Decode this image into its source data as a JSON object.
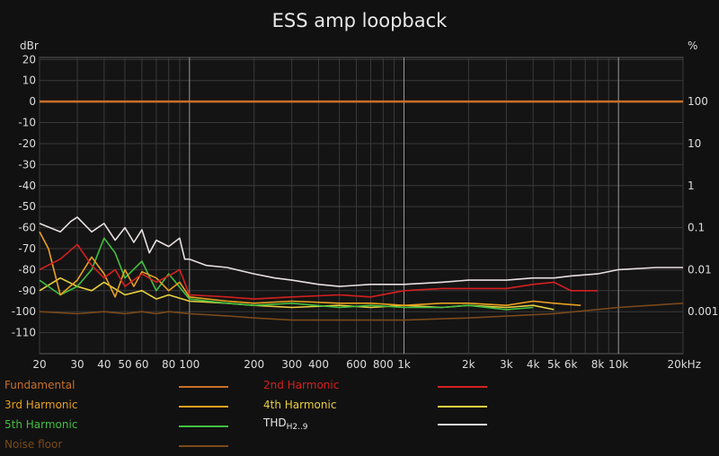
{
  "chart_data": {
    "type": "line",
    "title": "ESS amp loopback",
    "y_left_unit": "dBr",
    "y_right_unit": "%",
    "xlim": [
      20,
      20000
    ],
    "x_scale": "log",
    "ylim": [
      -120,
      21
    ],
    "y_ticks": [
      20,
      10,
      0,
      -10,
      -20,
      -30,
      -40,
      -50,
      -60,
      -70,
      -80,
      -90,
      -100,
      -110
    ],
    "y_tick_labels": [
      "20",
      "10",
      "0",
      "-10",
      "-20",
      "-30",
      "-40",
      "-50",
      "-60",
      "-70",
      "-80",
      "-90",
      "-100",
      "-110"
    ],
    "y_right_ticks": [
      {
        "label": "100",
        "dbr": 0
      },
      {
        "label": "10",
        "dbr": -20
      },
      {
        "label": "1",
        "dbr": -40
      },
      {
        "label": "0.1",
        "dbr": -60
      },
      {
        "label": "0.01",
        "dbr": -80
      },
      {
        "label": "0.001",
        "dbr": -100
      }
    ],
    "x_tick_labels": [
      {
        "label": "20",
        "x": 20
      },
      {
        "label": "30",
        "x": 30
      },
      {
        "label": "40",
        "x": 40
      },
      {
        "label": "50",
        "x": 50
      },
      {
        "label": "60",
        "x": 60
      },
      {
        "label": "80",
        "x": 80
      },
      {
        "label": "100",
        "x": 100
      },
      {
        "label": "200",
        "x": 200
      },
      {
        "label": "300",
        "x": 300
      },
      {
        "label": "400",
        "x": 400
      },
      {
        "label": "600",
        "x": 600
      },
      {
        "label": "800",
        "x": 800
      },
      {
        "label": "1k",
        "x": 1000
      },
      {
        "label": "2k",
        "x": 2000
      },
      {
        "label": "3k",
        "x": 3000
      },
      {
        "label": "4k",
        "x": 4000
      },
      {
        "label": "5k",
        "x": 5000
      },
      {
        "label": "6k",
        "x": 6000
      },
      {
        "label": "8k",
        "x": 8000
      },
      {
        "label": "10k",
        "x": 10000
      },
      {
        "label": "20kHz",
        "x": 20000
      }
    ],
    "grid": true,
    "series": [
      {
        "name": "Fundamental",
        "color": "#c8702a",
        "x": [
          20,
          20000
        ],
        "y": [
          0,
          0
        ]
      },
      {
        "name": "2nd Harmonic",
        "color": "#d42020",
        "x": [
          20,
          25,
          30,
          35,
          40,
          45,
          50,
          60,
          70,
          80,
          90,
          100,
          150,
          200,
          300,
          500,
          700,
          1000,
          1500,
          2000,
          3000,
          4000,
          5000,
          6000,
          8000
        ],
        "y": [
          -80,
          -75,
          -68,
          -78,
          -84,
          -80,
          -88,
          -82,
          -86,
          -83,
          -80,
          -92,
          -93,
          -94,
          -93,
          -92,
          -93,
          -90,
          -89,
          -89,
          -89,
          -87,
          -86,
          -90,
          -90
        ]
      },
      {
        "name": "3rd Harmonic",
        "color": "#e8a020",
        "x": [
          20,
          22,
          25,
          30,
          35,
          40,
          45,
          50,
          55,
          60,
          70,
          80,
          90,
          100,
          150,
          200,
          300,
          500,
          700,
          1000,
          1500,
          2000,
          3000,
          4000,
          5000,
          6666
        ],
        "y": [
          -62,
          -70,
          -92,
          -85,
          -74,
          -82,
          -93,
          -80,
          -88,
          -81,
          -84,
          -90,
          -86,
          -93,
          -95,
          -96,
          -95,
          -96,
          -96,
          -97,
          -96,
          -96,
          -97,
          -95,
          -96,
          -97
        ]
      },
      {
        "name": "4th Harmonic",
        "color": "#e8d040",
        "x": [
          20,
          25,
          30,
          35,
          40,
          50,
          60,
          70,
          80,
          100,
          150,
          200,
          300,
          500,
          700,
          1000,
          1500,
          2000,
          3000,
          4000,
          5000
        ],
        "y": [
          -90,
          -84,
          -88,
          -90,
          -86,
          -92,
          -90,
          -94,
          -92,
          -95,
          -96,
          -97,
          -98,
          -97,
          -98,
          -97,
          -98,
          -97,
          -98,
          -97,
          -99
        ]
      },
      {
        "name": "5th Harmonic",
        "color": "#40c040",
        "x": [
          20,
          25,
          30,
          35,
          40,
          45,
          50,
          60,
          70,
          80,
          100,
          150,
          200,
          300,
          500,
          700,
          1000,
          1500,
          2000,
          3000,
          4000
        ],
        "y": [
          -85,
          -92,
          -88,
          -80,
          -65,
          -72,
          -84,
          -76,
          -90,
          -82,
          -94,
          -96,
          -97,
          -96,
          -98,
          -97,
          -98,
          -98,
          -97,
          -99,
          -98
        ]
      },
      {
        "name": "THD H2..9",
        "color": "#e8e0e0",
        "x": [
          20,
          25,
          28,
          30,
          35,
          40,
          45,
          50,
          55,
          60,
          65,
          70,
          80,
          90,
          95,
          100,
          120,
          150,
          200,
          250,
          300,
          400,
          500,
          700,
          1000,
          1500,
          2000,
          3000,
          4000,
          5000,
          6000,
          8000,
          10000,
          15000,
          20000
        ],
        "y": [
          -58,
          -62,
          -57,
          -55,
          -62,
          -58,
          -66,
          -60,
          -67,
          -61,
          -72,
          -66,
          -69,
          -65,
          -75,
          -75,
          -78,
          -79,
          -82,
          -84,
          -85,
          -87,
          -88,
          -87,
          -87,
          -86,
          -85,
          -85,
          -84,
          -84,
          -83,
          -82,
          -80,
          -79,
          -79
        ]
      },
      {
        "name": "Noise floor",
        "color": "#7a4a1a",
        "x": [
          20,
          30,
          40,
          50,
          60,
          70,
          80,
          100,
          150,
          200,
          300,
          500,
          1000,
          2000,
          5000,
          10000,
          20000
        ],
        "y": [
          -100,
          -101,
          -100,
          -101,
          -100,
          -101,
          -100,
          -101,
          -102,
          -103,
          -104,
          -104,
          -104,
          -103,
          -101,
          -98,
          -96
        ]
      }
    ]
  },
  "legend": [
    {
      "name": "Fundamental",
      "color": "#c8702a"
    },
    {
      "name": "2nd Harmonic",
      "color": "#d42020"
    },
    {
      "name": "3rd Harmonic",
      "color": "#e8a020"
    },
    {
      "name": "4th Harmonic",
      "color": "#e8d040"
    },
    {
      "name": "5th Harmonic",
      "color": "#40c040"
    },
    {
      "name": "THD",
      "sub": "H2..9",
      "color": "#e8e0e0"
    },
    {
      "name": "Noise floor",
      "color": "#7a4a1a"
    }
  ]
}
